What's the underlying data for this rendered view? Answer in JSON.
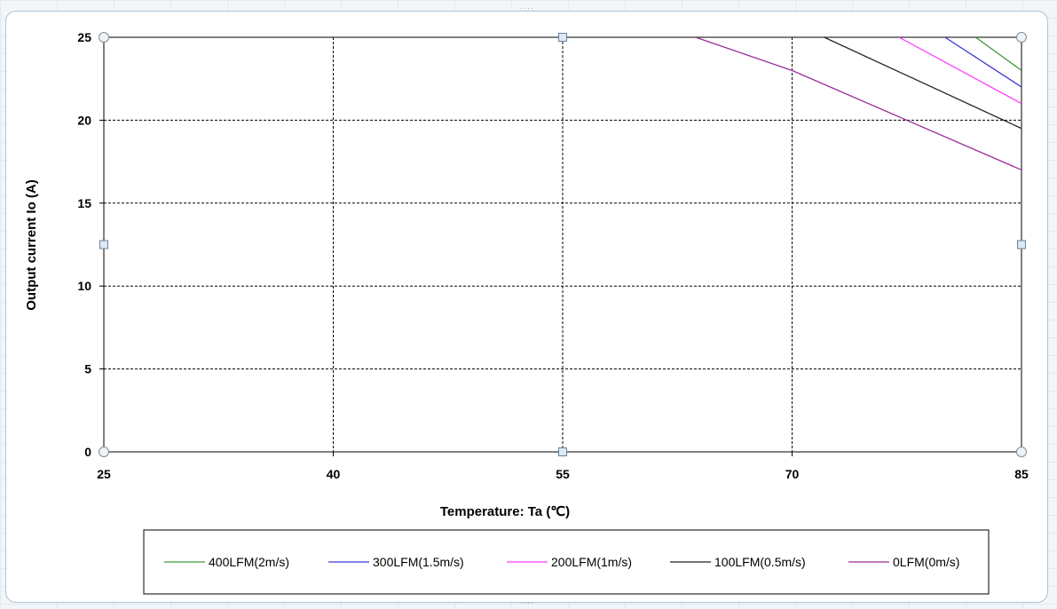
{
  "chart_data": {
    "type": "line",
    "title": "",
    "xlabel": "Temperature: Ta (℃)",
    "ylabel": "Output current  Io (A)",
    "xlim": [
      25,
      85
    ],
    "ylim": [
      0,
      25
    ],
    "x_ticks": [
      "25",
      "40",
      "55",
      "70",
      "85"
    ],
    "y_ticks": [
      "0",
      "5",
      "10",
      "15",
      "20",
      "25"
    ],
    "grid": true,
    "legend_placement": "bottom",
    "series": [
      {
        "name": "400LFM(2m/s)",
        "color": "#3c9a3c",
        "points": [
          [
            82,
            25
          ],
          [
            85,
            23
          ]
        ]
      },
      {
        "name": "300LFM(1.5m/s)",
        "color": "#3a3ad6",
        "points": [
          [
            80,
            25
          ],
          [
            85,
            22
          ]
        ]
      },
      {
        "name": "200LFM(1m/s)",
        "color": "#ff3cff",
        "points": [
          [
            77,
            25
          ],
          [
            85,
            21
          ]
        ]
      },
      {
        "name": "100LFM(0.5m/s)",
        "color": "#222222",
        "points": [
          [
            72.1,
            25
          ],
          [
            85,
            19.5
          ]
        ]
      },
      {
        "name": "0LFM(0m/s)",
        "color": "#9b2d9b",
        "points": [
          [
            63.7,
            25
          ],
          [
            70,
            23
          ],
          [
            85,
            17
          ]
        ]
      }
    ]
  }
}
